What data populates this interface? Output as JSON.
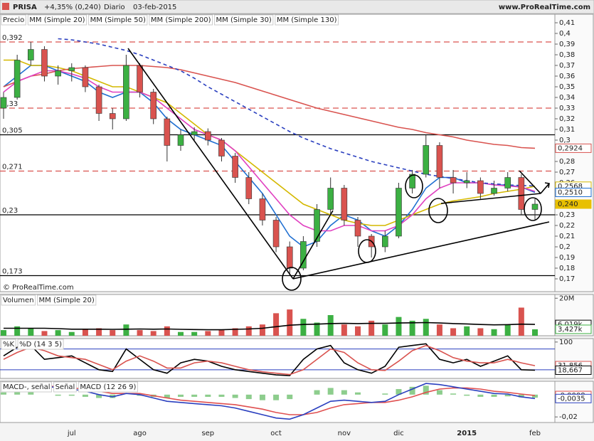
{
  "header": {
    "symbol": "PRISA",
    "change": "+4,35% (0,240)",
    "period": "Diario",
    "date": "03-feb-2015",
    "site": "www.ProRealTime.com"
  },
  "chart_data": [
    {
      "type": "candlestick",
      "legend_title": "Precio",
      "credit": "© ProRealTime.com",
      "categories": [
        null,
        null,
        null,
        null,
        null,
        "jul",
        null,
        null,
        null,
        null,
        "ago",
        null,
        null,
        null,
        null,
        "sep",
        null,
        null,
        null,
        null,
        "oct",
        null,
        null,
        null,
        null,
        "nov",
        null,
        null,
        null,
        "dic",
        null,
        null,
        null,
        null,
        "2015",
        null,
        null,
        null,
        null,
        "feb"
      ],
      "open": [
        0.33,
        0.34,
        0.375,
        0.385,
        0.36,
        0.365,
        0.368,
        0.35,
        0.325,
        0.32,
        0.37,
        0.345,
        0.32,
        0.295,
        0.305,
        0.308,
        0.3,
        0.285,
        0.265,
        0.245,
        0.225,
        0.2,
        0.18,
        0.205,
        0.235,
        0.255,
        0.225,
        0.21,
        0.2,
        0.21,
        0.255,
        0.268,
        0.295,
        0.265,
        0.26,
        0.262,
        0.25,
        0.255,
        0.265,
        0.235
      ],
      "high": [
        0.345,
        0.38,
        0.392,
        0.388,
        0.37,
        0.372,
        0.37,
        0.352,
        0.33,
        0.38,
        0.372,
        0.348,
        0.322,
        0.31,
        0.312,
        0.311,
        0.302,
        0.288,
        0.27,
        0.25,
        0.228,
        0.205,
        0.21,
        0.24,
        0.265,
        0.258,
        0.228,
        0.212,
        0.215,
        0.26,
        0.272,
        0.305,
        0.298,
        0.272,
        0.27,
        0.265,
        0.262,
        0.27,
        0.268,
        0.245
      ],
      "low": [
        0.32,
        0.338,
        0.37,
        0.355,
        0.352,
        0.355,
        0.345,
        0.318,
        0.31,
        0.318,
        0.34,
        0.315,
        0.28,
        0.29,
        0.3,
        0.295,
        0.28,
        0.26,
        0.24,
        0.22,
        0.195,
        0.173,
        0.178,
        0.2,
        0.23,
        0.22,
        0.2,
        0.19,
        0.195,
        0.208,
        0.25,
        0.265,
        0.255,
        0.25,
        0.255,
        0.245,
        0.248,
        0.252,
        0.23,
        0.225
      ],
      "close": [
        0.34,
        0.375,
        0.385,
        0.36,
        0.365,
        0.368,
        0.35,
        0.325,
        0.32,
        0.37,
        0.345,
        0.32,
        0.295,
        0.305,
        0.308,
        0.3,
        0.285,
        0.265,
        0.245,
        0.225,
        0.2,
        0.18,
        0.205,
        0.235,
        0.255,
        0.225,
        0.21,
        0.2,
        0.21,
        0.255,
        0.268,
        0.295,
        0.265,
        0.26,
        0.262,
        0.25,
        0.255,
        0.265,
        0.235,
        0.24
      ],
      "up_color": "#3cb043",
      "down_color": "#d9534f",
      "series": [
        {
          "name": "MM (Simple 20)",
          "color": "#1f6fd1",
          "values": [
            0.35,
            0.36,
            0.37,
            0.37,
            0.365,
            0.36,
            0.355,
            0.345,
            0.34,
            0.345,
            0.345,
            0.335,
            0.32,
            0.31,
            0.305,
            0.3,
            0.295,
            0.28,
            0.265,
            0.25,
            0.23,
            0.21,
            0.2,
            0.205,
            0.22,
            0.23,
            0.225,
            0.215,
            0.21,
            0.22,
            0.235,
            0.255,
            0.265,
            0.265,
            0.26,
            0.26,
            0.258,
            0.258,
            0.256,
            0.251
          ]
        },
        {
          "name": "MM (Simple 50)",
          "color": "#d4b800",
          "values": [
            0.375,
            0.375,
            0.37,
            0.37,
            0.368,
            0.365,
            0.36,
            0.355,
            0.35,
            0.35,
            0.345,
            0.34,
            0.335,
            0.325,
            0.315,
            0.305,
            0.3,
            0.29,
            0.28,
            0.27,
            0.26,
            0.25,
            0.24,
            0.235,
            0.23,
            0.225,
            0.222,
            0.22,
            0.22,
            0.225,
            0.23,
            0.235,
            0.24,
            0.243,
            0.245,
            0.247,
            0.25,
            0.252,
            0.254,
            0.2568
          ]
        },
        {
          "name": "MM (Simple 200)",
          "color": "#d9534f",
          "values": [
            0.35,
            0.355,
            0.36,
            0.362,
            0.365,
            0.367,
            0.368,
            0.369,
            0.37,
            0.37,
            0.37,
            0.369,
            0.368,
            0.366,
            0.363,
            0.36,
            0.357,
            0.354,
            0.35,
            0.346,
            0.342,
            0.338,
            0.334,
            0.33,
            0.327,
            0.324,
            0.321,
            0.318,
            0.315,
            0.312,
            0.31,
            0.307,
            0.305,
            0.303,
            0.3,
            0.298,
            0.296,
            0.295,
            0.293,
            0.2924
          ]
        },
        {
          "name": "MM (Simple 30)",
          "color": "#e040c0",
          "values": [
            0.345,
            0.355,
            0.36,
            0.365,
            0.365,
            0.362,
            0.358,
            0.35,
            0.345,
            0.345,
            0.345,
            0.34,
            0.33,
            0.32,
            0.31,
            0.305,
            0.3,
            0.29,
            0.275,
            0.26,
            0.245,
            0.23,
            0.22,
            0.215,
            0.215,
            0.22,
            0.22,
            0.215,
            0.215,
            0.22,
            0.23,
            0.245,
            0.255,
            0.26,
            0.26,
            0.26,
            0.258,
            0.257,
            0.256,
            0.252
          ]
        },
        {
          "name": "MM (Simple 130)",
          "color": "#2a3fbf",
          "dashed": true,
          "values": [
            null,
            null,
            null,
            null,
            0.395,
            0.394,
            0.392,
            0.39,
            0.387,
            0.384,
            0.38,
            0.375,
            0.37,
            0.365,
            0.358,
            0.35,
            0.343,
            0.336,
            0.329,
            0.322,
            0.315,
            0.308,
            0.302,
            0.297,
            0.292,
            0.288,
            0.284,
            0.28,
            0.277,
            0.274,
            0.271,
            0.268,
            0.266,
            0.264,
            0.262,
            0.26,
            0.259,
            0.258,
            0.2575,
            0.257
          ]
        }
      ],
      "ylim": [
        0.158,
        0.418
      ],
      "yticks": [
        {
          "value": 0.17,
          "label": "0,17"
        },
        {
          "value": 0.18,
          "label": "0,18"
        },
        {
          "value": 0.19,
          "label": "0,19"
        },
        {
          "value": 0.2,
          "label": "0,2"
        },
        {
          "value": 0.21,
          "label": "0,21"
        },
        {
          "value": 0.22,
          "label": "0,22"
        },
        {
          "value": 0.23,
          "label": "0,23"
        },
        {
          "value": 0.24,
          "label": "0,24"
        },
        {
          "value": 0.26,
          "label": "0,26"
        },
        {
          "value": 0.27,
          "label": "0,27"
        },
        {
          "value": 0.28,
          "label": "0,28"
        },
        {
          "value": 0.3,
          "label": "0,3"
        },
        {
          "value": 0.31,
          "label": "0,31"
        },
        {
          "value": 0.32,
          "label": "0,32"
        },
        {
          "value": 0.33,
          "label": "0,33"
        },
        {
          "value": 0.34,
          "label": "0,34"
        },
        {
          "value": 0.35,
          "label": "0,35"
        },
        {
          "value": 0.36,
          "label": "0,36"
        },
        {
          "value": 0.37,
          "label": "0,37"
        },
        {
          "value": 0.38,
          "label": "0,38"
        },
        {
          "value": 0.39,
          "label": "0,39"
        },
        {
          "value": 0.4,
          "label": "0,4"
        },
        {
          "value": 0.41,
          "label": "0,41"
        }
      ],
      "levels": [
        {
          "value": 0.392,
          "label": "0,392",
          "color": "#d9534f",
          "dashed": true
        },
        {
          "value": 0.33,
          "label": "0,33",
          "color": "#d9534f",
          "dashed": true
        },
        {
          "value": 0.305,
          "label": "0,305",
          "color": "#000",
          "dashed": false
        },
        {
          "value": 0.271,
          "label": "0,271",
          "color": "#d9534f",
          "dashed": true
        },
        {
          "value": 0.23,
          "label": "0,23",
          "color": "#000",
          "dashed": false
        },
        {
          "value": 0.173,
          "label": "0,173",
          "color": "#000",
          "dashed": false
        }
      ],
      "last_labels": [
        {
          "value": 0.2924,
          "label": "0,2924",
          "color": "#d9534f"
        },
        {
          "value": 0.2568,
          "label": "0,2568",
          "color": "#d4b800"
        },
        {
          "value": 0.251,
          "label": "0,2510",
          "color": "#1f6fd1"
        },
        {
          "value": 0.24,
          "label": "0,240",
          "color": "#e8c000"
        }
      ]
    },
    {
      "type": "volume",
      "series": [
        {
          "name": "Volumen",
          "color": "#3cb043",
          "values": [
            3,
            5,
            4,
            2.5,
            3,
            2,
            3.5,
            4,
            3,
            6,
            3,
            2.5,
            5,
            2,
            2,
            2.5,
            3,
            4,
            5,
            6,
            12,
            14,
            9,
            7,
            11,
            6,
            5,
            8,
            6,
            10,
            8,
            9,
            6,
            4,
            5,
            4,
            3.5,
            6,
            15,
            3.427
          ]
        },
        {
          "name": "MM (Simple 20)",
          "color": "#000",
          "values": [
            4,
            4,
            4,
            4,
            3.8,
            3.5,
            3.5,
            3.5,
            3.4,
            3.5,
            3.6,
            3.5,
            3.6,
            3.4,
            3.3,
            3.2,
            3.2,
            3.4,
            3.6,
            4,
            4.8,
            5.6,
            6,
            6.2,
            6.5,
            6.6,
            6.5,
            6.6,
            6.6,
            6.8,
            6.9,
            7,
            6.8,
            6.5,
            6.3,
            6,
            5.8,
            5.9,
            6.2,
            6.019
          ]
        }
      ],
      "ylim": [
        0,
        22
      ],
      "yticks": [
        {
          "value": 20,
          "label": "20M"
        }
      ],
      "last_labels": [
        {
          "value": 6.019,
          "label": "6,019k",
          "color": "#000"
        },
        {
          "value": 3.427,
          "label": "3,427k",
          "color": "#3cb043"
        }
      ]
    },
    {
      "type": "stochastic",
      "series": [
        {
          "name": "%K",
          "color": "#000",
          "values": [
            60,
            85,
            90,
            50,
            55,
            60,
            40,
            20,
            15,
            80,
            50,
            20,
            10,
            40,
            50,
            45,
            30,
            20,
            15,
            10,
            5,
            3,
            50,
            80,
            90,
            40,
            20,
            10,
            30,
            85,
            90,
            95,
            50,
            40,
            50,
            30,
            45,
            60,
            20,
            18.667
          ]
        },
        {
          "name": "%D (14 3 5)",
          "color": "#d9534f",
          "values": [
            50,
            70,
            85,
            75,
            60,
            55,
            50,
            35,
            20,
            45,
            60,
            45,
            25,
            25,
            40,
            45,
            40,
            30,
            20,
            14,
            10,
            6,
            20,
            50,
            80,
            70,
            40,
            20,
            18,
            45,
            75,
            90,
            75,
            55,
            45,
            40,
            40,
            50,
            40,
            31.856
          ]
        }
      ],
      "ylim": [
        -5,
        110
      ],
      "yticks": [
        100
      ],
      "levels": [
        80,
        20
      ],
      "last_labels": [
        {
          "value": 31.856,
          "label": "31,856",
          "color": "#d9534f"
        },
        {
          "value": 18.667,
          "label": "18,667",
          "color": "#000"
        }
      ]
    },
    {
      "type": "macd",
      "series": [
        {
          "name": "MACD-, señal",
          "color": "#5cb85c",
          "histogram": true,
          "values": [
            0.002,
            0.003,
            0.003,
            0,
            -0.001,
            -0.001,
            -0.002,
            -0.003,
            -0.003,
            0,
            -0.001,
            -0.002,
            -0.003,
            -0.002,
            -0.002,
            -0.002,
            -0.002,
            -0.003,
            -0.004,
            -0.005,
            -0.005,
            -0.004,
            0,
            0.004,
            0.006,
            0.004,
            0.002,
            0,
            0.001,
            0.005,
            0.007,
            0.008,
            0.004,
            0.001,
            -0.001,
            -0.002,
            -0.002,
            -0.0015,
            -0.0025,
            -0.0027
          ]
        },
        {
          "name": "Señal",
          "color": "#e05050",
          "values": [
            0.003,
            0.005,
            0.007,
            0.008,
            0.007,
            0.006,
            0.005,
            0.003,
            0.001,
            0.001,
            0.001,
            -0.001,
            -0.003,
            -0.005,
            -0.006,
            -0.007,
            -0.008,
            -0.009,
            -0.011,
            -0.013,
            -0.016,
            -0.018,
            -0.018,
            -0.016,
            -0.012,
            -0.009,
            -0.008,
            -0.007,
            -0.007,
            -0.005,
            -0.002,
            0.002,
            0.005,
            0.006,
            0.006,
            0.005,
            0.003,
            0.002,
            0.0005,
            -0.0008
          ]
        },
        {
          "name": "MACD (12 26 9)",
          "color": "#2a3fbf",
          "values": [
            0.005,
            0.008,
            0.01,
            0.008,
            0.006,
            0.005,
            0.003,
            0,
            -0.002,
            0.001,
            0,
            -0.003,
            -0.006,
            -0.007,
            -0.008,
            -0.009,
            -0.01,
            -0.012,
            -0.015,
            -0.018,
            -0.021,
            -0.022,
            -0.018,
            -0.012,
            -0.006,
            -0.005,
            -0.006,
            -0.007,
            -0.006,
            0,
            0.005,
            0.01,
            0.009,
            0.007,
            0.005,
            0.003,
            0.001,
            0.0005,
            -0.002,
            -0.0035
          ]
        }
      ],
      "ylim": [
        -0.025,
        0.012
      ],
      "yticks": [
        {
          "value": -0.02,
          "label": "-0,02"
        }
      ],
      "last_labels": [
        {
          "value": -0.0008,
          "label": "-0,0008",
          "color": "#e05050"
        },
        {
          "value": -0.0035,
          "label": "-0,0035",
          "color": "#2a3fbf"
        }
      ]
    }
  ]
}
